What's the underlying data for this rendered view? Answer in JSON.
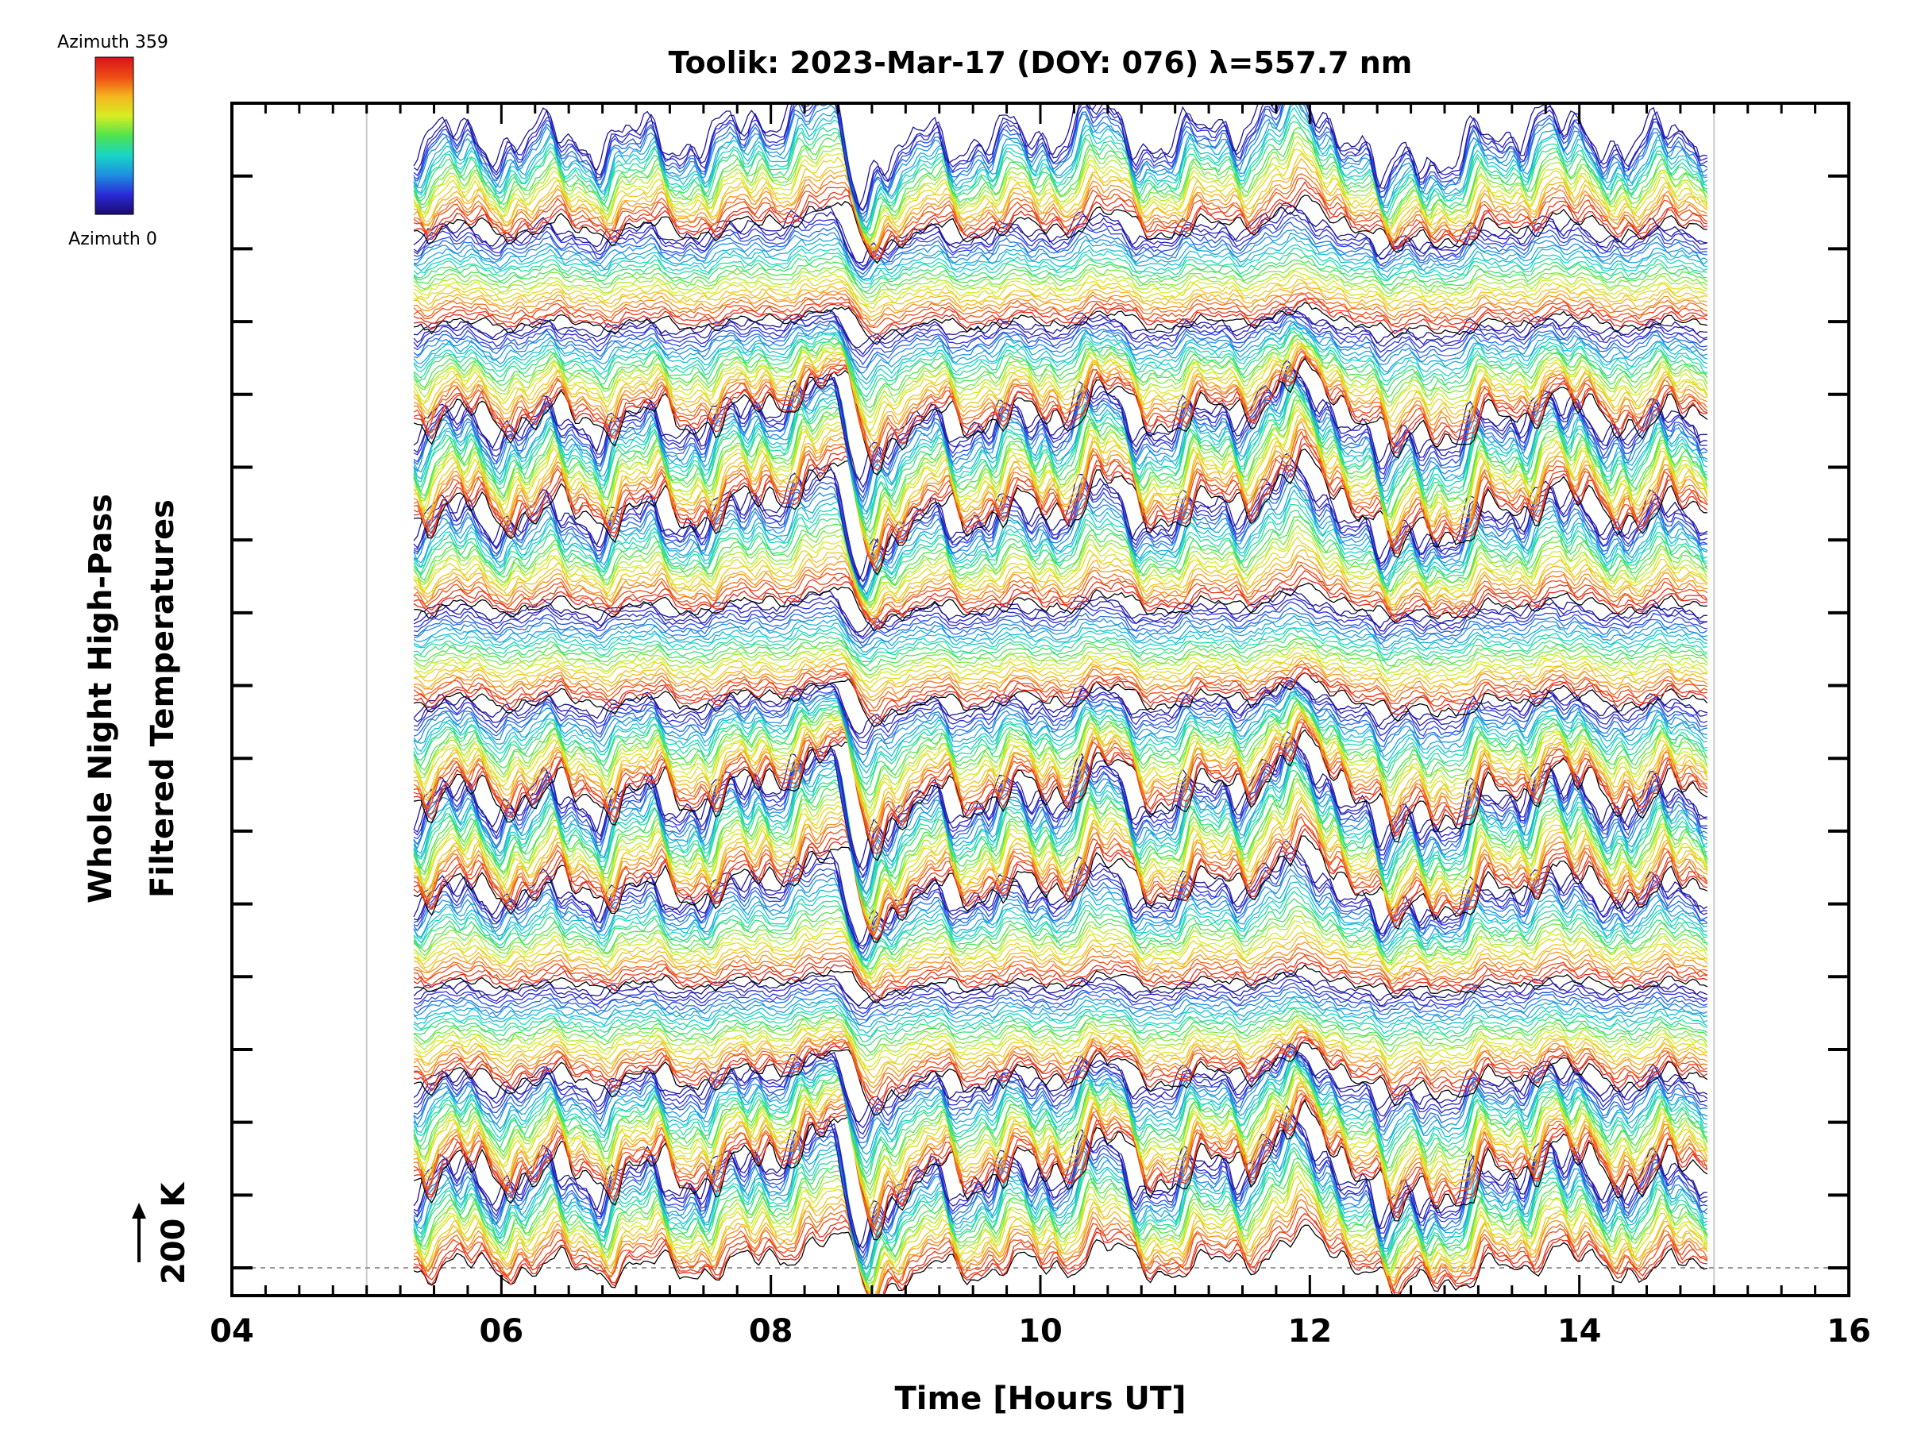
{
  "chart_data": {
    "type": "line",
    "title": "Toolik: 2023-Mar-17 (DOY: 076) λ=557.7 nm",
    "xlabel": "Time [Hours UT]",
    "ylabel_line1": "Whole Night High-Pass",
    "ylabel_line2": "Filtered Temperatures",
    "scale_label": "200 K",
    "xlim": [
      4,
      16
    ],
    "x_tick_labels": [
      "04",
      "06",
      "08",
      "10",
      "12",
      "14",
      "16"
    ],
    "data_start_hour": 5.35,
    "data_end_hour": 14.95,
    "colorbar": {
      "top_label": "Azimuth 359",
      "bottom_label": "Azimuth 0",
      "colors": [
        "#1a0a6e",
        "#2a2ad8",
        "#1e8fe0",
        "#18d6c8",
        "#4ee34e",
        "#d6ee22",
        "#f5b51e",
        "#ee4a14",
        "#d8141e"
      ]
    },
    "series_groups": 12,
    "series_per_group": 24,
    "events": [
      {
        "hour": 8.6,
        "type": "sharp dip"
      },
      {
        "hour": 12.6,
        "type": "dip"
      },
      {
        "hour": 13.7,
        "type": "rise"
      }
    ]
  }
}
